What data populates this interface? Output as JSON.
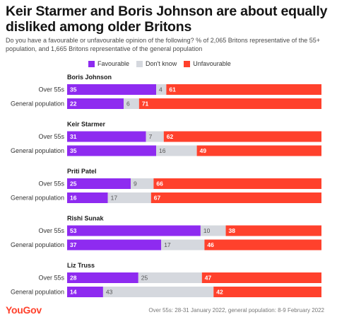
{
  "title": "Keir Starmer and Boris Johnson are about equally disliked among older Britons",
  "subtitle": "Do you have a favourable or unfavourable opinion of the following? % of 2,065 Britons representative of the 55+ population, and 1,665 Britons representative of the general population",
  "footer": {
    "logo": "YouGov",
    "note": "Over 55s: 28-31 January 2022, general population: 8-9 February 2022"
  },
  "colors": {
    "favourable": "#8e2bf0",
    "dont_know": "#d5d8de",
    "unfavourable": "#ff412c"
  },
  "chart_data": {
    "type": "bar",
    "orientation": "horizontal",
    "stacked": true,
    "normalized_to_100": true,
    "legend_position": "top",
    "grid": false,
    "series": [
      {
        "name": "Favourable",
        "color": "#8e2bf0"
      },
      {
        "name": "Don't know",
        "color": "#d5d8de"
      },
      {
        "name": "Unfavourable",
        "color": "#ff412c"
      }
    ],
    "groups": [
      {
        "name": "Boris Johnson",
        "rows": [
          {
            "label": "Over 55s",
            "values": [
              35,
              4,
              61
            ]
          },
          {
            "label": "General population",
            "values": [
              22,
              6,
              71
            ]
          }
        ]
      },
      {
        "name": "Keir Starmer",
        "rows": [
          {
            "label": "Over 55s",
            "values": [
              31,
              7,
              62
            ]
          },
          {
            "label": "General population",
            "values": [
              35,
              16,
              49
            ]
          }
        ]
      },
      {
        "name": "Priti Patel",
        "rows": [
          {
            "label": "Over 55s",
            "values": [
              25,
              9,
              66
            ]
          },
          {
            "label": "General population",
            "values": [
              16,
              17,
              67
            ]
          }
        ]
      },
      {
        "name": "Rishi Sunak",
        "rows": [
          {
            "label": "Over 55s",
            "values": [
              53,
              10,
              38
            ]
          },
          {
            "label": "General population",
            "values": [
              37,
              17,
              46
            ]
          }
        ]
      },
      {
        "name": "Liz Truss",
        "rows": [
          {
            "label": "Over 55s",
            "values": [
              28,
              25,
              47
            ]
          },
          {
            "label": "General population",
            "values": [
              14,
              43,
              42
            ]
          }
        ]
      }
    ]
  }
}
